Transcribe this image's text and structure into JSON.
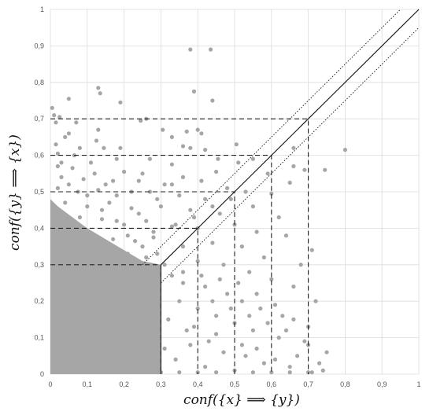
{
  "chart_data": {
    "type": "scatter",
    "title": "",
    "xlabel": "conf({x} ⟹ {y})",
    "ylabel": "conf({y} ⟹ {x})",
    "xlim": [
      0,
      1
    ],
    "ylim": [
      0,
      1
    ],
    "grid": true,
    "x_ticks": [
      "0",
      "0,1",
      "0,2",
      "0,3",
      "0,4",
      "0,5",
      "0,6",
      "0,7",
      "0,8",
      "0,9",
      "1"
    ],
    "y_ticks": [
      "0",
      "0,1",
      "0,2",
      "0,3",
      "0,4",
      "0,5",
      "0,6",
      "0,7",
      "0,8",
      "0,9",
      "1"
    ],
    "marker_color": "#a6a6a6",
    "series": [
      {
        "name": "",
        "points": [
          [
            0.38,
            0.89
          ],
          [
            0.435,
            0.89
          ],
          [
            0.39,
            0.775
          ],
          [
            0.13,
            0.785
          ],
          [
            0.135,
            0.77
          ],
          [
            0.44,
            0.75
          ],
          [
            0.19,
            0.745
          ],
          [
            0.05,
            0.755
          ],
          [
            0.005,
            0.73
          ],
          [
            0.01,
            0.71
          ],
          [
            0.025,
            0.705
          ],
          [
            0.07,
            0.69
          ],
          [
            0.13,
            0.67
          ],
          [
            0.245,
            0.695
          ],
          [
            0.26,
            0.7
          ],
          [
            0.305,
            0.67
          ],
          [
            0.4,
            0.67
          ],
          [
            0.41,
            0.66
          ],
          [
            0.37,
            0.665
          ],
          [
            0.33,
            0.65
          ],
          [
            0.125,
            0.64
          ],
          [
            0.145,
            0.62
          ],
          [
            0.19,
            0.62
          ],
          [
            0.04,
            0.65
          ],
          [
            0.36,
            0.625
          ],
          [
            0.38,
            0.62
          ],
          [
            0.42,
            0.615
          ],
          [
            0.505,
            0.63
          ],
          [
            0.66,
            0.62
          ],
          [
            0.8,
            0.615
          ],
          [
            0.02,
            0.605
          ],
          [
            0.065,
            0.6
          ],
          [
            0.18,
            0.59
          ],
          [
            0.27,
            0.59
          ],
          [
            0.33,
            0.575
          ],
          [
            0.455,
            0.59
          ],
          [
            0.51,
            0.58
          ],
          [
            0.55,
            0.59
          ],
          [
            0.66,
            0.57
          ],
          [
            0.69,
            0.56
          ],
          [
            0.02,
            0.57
          ],
          [
            0.06,
            0.565
          ],
          [
            0.12,
            0.55
          ],
          [
            0.2,
            0.555
          ],
          [
            0.25,
            0.55
          ],
          [
            0.36,
            0.54
          ],
          [
            0.45,
            0.555
          ],
          [
            0.59,
            0.55
          ],
          [
            0.745,
            0.56
          ],
          [
            0.03,
            0.54
          ],
          [
            0.09,
            0.535
          ],
          [
            0.15,
            0.52
          ],
          [
            0.24,
            0.53
          ],
          [
            0.33,
            0.52
          ],
          [
            0.41,
            0.53
          ],
          [
            0.48,
            0.51
          ],
          [
            0.53,
            0.5
          ],
          [
            0.65,
            0.525
          ],
          [
            0.02,
            0.51
          ],
          [
            0.075,
            0.5
          ],
          [
            0.13,
            0.505
          ],
          [
            0.18,
            0.49
          ],
          [
            0.27,
            0.5
          ],
          [
            0.35,
            0.49
          ],
          [
            0.42,
            0.48
          ],
          [
            0.6,
            0.495
          ],
          [
            0.04,
            0.47
          ],
          [
            0.1,
            0.46
          ],
          [
            0.16,
            0.47
          ],
          [
            0.22,
            0.455
          ],
          [
            0.3,
            0.46
          ],
          [
            0.38,
            0.45
          ],
          [
            0.46,
            0.44
          ],
          [
            0.55,
            0.46
          ],
          [
            0.62,
            0.43
          ],
          [
            0.02,
            0.44
          ],
          [
            0.08,
            0.43
          ],
          [
            0.14,
            0.425
          ],
          [
            0.2,
            0.41
          ],
          [
            0.26,
            0.42
          ],
          [
            0.33,
            0.405
          ],
          [
            0.4,
            0.4
          ],
          [
            0.5,
            0.41
          ],
          [
            0.56,
            0.39
          ],
          [
            0.64,
            0.38
          ],
          [
            0.71,
            0.34
          ],
          [
            0.01,
            0.4
          ],
          [
            0.06,
            0.39
          ],
          [
            0.12,
            0.38
          ],
          [
            0.17,
            0.37
          ],
          [
            0.23,
            0.365
          ],
          [
            0.28,
            0.375
          ],
          [
            0.36,
            0.35
          ],
          [
            0.44,
            0.36
          ],
          [
            0.52,
            0.35
          ],
          [
            0.58,
            0.32
          ],
          [
            0.68,
            0.3
          ],
          [
            0.03,
            0.36
          ],
          [
            0.09,
            0.345
          ],
          [
            0.15,
            0.34
          ],
          [
            0.21,
            0.33
          ],
          [
            0.26,
            0.32
          ],
          [
            0.31,
            0.3
          ],
          [
            0.4,
            0.31
          ],
          [
            0.47,
            0.3
          ],
          [
            0.54,
            0.28
          ],
          [
            0.6,
            0.26
          ],
          [
            0.66,
            0.24
          ],
          [
            0.72,
            0.2
          ],
          [
            0.02,
            0.32
          ],
          [
            0.07,
            0.315
          ],
          [
            0.11,
            0.31
          ],
          [
            0.16,
            0.305
          ],
          [
            0.33,
            0.27
          ],
          [
            0.36,
            0.25
          ],
          [
            0.42,
            0.24
          ],
          [
            0.48,
            0.22
          ],
          [
            0.52,
            0.2
          ],
          [
            0.57,
            0.18
          ],
          [
            0.63,
            0.16
          ],
          [
            0.7,
            0.13
          ],
          [
            0.74,
            0.01
          ],
          [
            0.69,
            0.09
          ],
          [
            0.62,
            0.1
          ],
          [
            0.55,
            0.12
          ],
          [
            0.5,
            0.14
          ],
          [
            0.45,
            0.16
          ],
          [
            0.4,
            0.18
          ],
          [
            0.35,
            0.2
          ],
          [
            0.32,
            0.15
          ],
          [
            0.37,
            0.12
          ],
          [
            0.43,
            0.09
          ],
          [
            0.47,
            0.06
          ],
          [
            0.53,
            0.05
          ],
          [
            0.58,
            0.03
          ],
          [
            0.65,
            0.02
          ],
          [
            0.71,
            0.005
          ],
          [
            0.6,
            0.005
          ],
          [
            0.5,
            0.01
          ],
          [
            0.42,
            0.02
          ],
          [
            0.34,
            0.04
          ],
          [
            0.31,
            0.07
          ],
          [
            0.38,
            0.08
          ],
          [
            0.45,
            0.11
          ],
          [
            0.52,
            0.08
          ],
          [
            0.56,
            0.07
          ],
          [
            0.61,
            0.04
          ],
          [
            0.67,
            0.05
          ],
          [
            0.73,
            0.03
          ],
          [
            0.39,
            0.13
          ],
          [
            0.44,
            0.2
          ],
          [
            0.49,
            0.18
          ],
          [
            0.54,
            0.16
          ],
          [
            0.59,
            0.14
          ],
          [
            0.64,
            0.12
          ],
          [
            0.36,
            0.28
          ],
          [
            0.41,
            0.27
          ],
          [
            0.46,
            0.26
          ],
          [
            0.51,
            0.25
          ],
          [
            0.56,
            0.22
          ],
          [
            0.61,
            0.19
          ],
          [
            0.66,
            0.15
          ],
          [
            0.7,
            0.08
          ],
          [
            0.75,
            0.06
          ],
          [
            0.28,
            0.39
          ],
          [
            0.34,
            0.41
          ],
          [
            0.39,
            0.43
          ],
          [
            0.44,
            0.46
          ],
          [
            0.49,
            0.48
          ],
          [
            0.24,
            0.44
          ],
          [
            0.29,
            0.48
          ],
          [
            0.31,
            0.52
          ],
          [
            0.22,
            0.5
          ],
          [
            0.17,
            0.53
          ],
          [
            0.11,
            0.58
          ],
          [
            0.08,
            0.62
          ],
          [
            0.05,
            0.66
          ],
          [
            0.015,
            0.69
          ],
          [
            0.015,
            0.63
          ],
          [
            0.03,
            0.58
          ],
          [
            0.05,
            0.52
          ],
          [
            0.1,
            0.49
          ],
          [
            0.14,
            0.45
          ],
          [
            0.18,
            0.42
          ],
          [
            0.21,
            0.38
          ],
          [
            0.25,
            0.35
          ],
          [
            0.29,
            0.33
          ],
          [
            0.3,
            0.005
          ],
          [
            0.35,
            0.005
          ],
          [
            0.4,
            0.005
          ],
          [
            0.45,
            0.005
          ],
          [
            0.55,
            0.005
          ],
          [
            0.65,
            0.005
          ],
          [
            0.7,
            0.005
          ]
        ]
      }
    ],
    "dense_region": {
      "description_points": [
        [
          0,
          0
        ],
        [
          0,
          0.48
        ],
        [
          0.02,
          0.46
        ],
        [
          0.06,
          0.43
        ],
        [
          0.1,
          0.4
        ],
        [
          0.15,
          0.37
        ],
        [
          0.2,
          0.34
        ],
        [
          0.25,
          0.31
        ],
        [
          0.3,
          0.3
        ],
        [
          0.3,
          0
        ],
        [
          0,
          0
        ]
      ]
    },
    "reference_lines": [
      {
        "style": "solid",
        "points": [
          [
            0.3,
            0.3
          ],
          [
            1,
            1
          ]
        ]
      },
      {
        "style": "dotted",
        "points": [
          [
            0.25,
            0.3
          ],
          [
            0.95,
            1
          ]
        ]
      },
      {
        "style": "dotted",
        "points": [
          [
            0.3,
            0.25
          ],
          [
            1,
            0.95
          ]
        ]
      },
      {
        "style": "solid",
        "points": [
          [
            0.3,
            0.3
          ],
          [
            0.3,
            0
          ]
        ]
      }
    ],
    "threshold_boxes": [
      0.3,
      0.4,
      0.5,
      0.6,
      0.7
    ]
  }
}
